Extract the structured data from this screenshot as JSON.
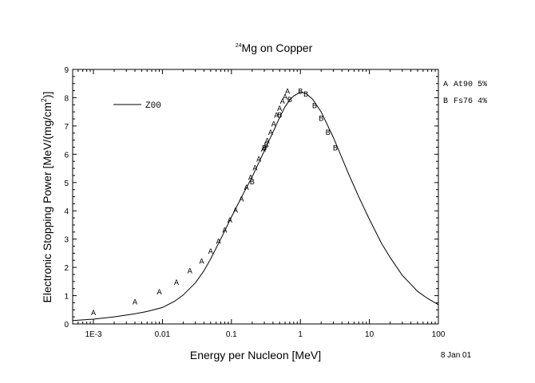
{
  "chart_data": {
    "type": "scatter",
    "title_prefix": "24",
    "title_text": "Mg on Copper",
    "xlabel": "Energy per Nucleon [MeV]",
    "ylabel_main": "Electronic Stopping Power [MeV/(mg/cm",
    "ylabel_sup": "2",
    "ylabel_end": ")]",
    "date": "8 Jan 01",
    "xscale": "log",
    "xlim": [
      0.0005,
      100
    ],
    "ylim": [
      0,
      9
    ],
    "x_tick_labels": [
      {
        "value": 0.001,
        "label": "1E-3"
      },
      {
        "value": 0.01,
        "label": "0.01"
      },
      {
        "value": 0.1,
        "label": "0.1"
      },
      {
        "value": 1,
        "label": "1"
      },
      {
        "value": 10,
        "label": "10"
      },
      {
        "value": 100,
        "label": "100"
      }
    ],
    "y_ticks": [
      0,
      1,
      2,
      3,
      4,
      5,
      6,
      7,
      8,
      9
    ],
    "legend": {
      "line_label": "Z00",
      "markers": [
        {
          "marker": "A",
          "text": "At90 5%"
        },
        {
          "marker": "B",
          "text": "Fs76 4%"
        }
      ]
    },
    "series": [
      {
        "name": "Z00",
        "kind": "line",
        "x": [
          0.0005,
          0.001,
          0.002,
          0.004,
          0.006,
          0.01,
          0.015,
          0.02,
          0.03,
          0.04,
          0.05,
          0.07,
          0.1,
          0.15,
          0.2,
          0.3,
          0.4,
          0.5,
          0.6,
          0.7,
          0.8,
          1.0,
          1.2,
          1.5,
          2.0,
          3.0,
          5.0,
          7.0,
          10,
          15,
          20,
          30,
          50,
          70,
          100
        ],
        "y": [
          0.12,
          0.17,
          0.25,
          0.36,
          0.44,
          0.58,
          0.8,
          1.02,
          1.45,
          1.88,
          2.3,
          3.0,
          3.78,
          4.62,
          5.2,
          6.12,
          6.78,
          7.3,
          7.68,
          7.92,
          8.06,
          8.2,
          8.15,
          7.95,
          7.5,
          6.6,
          5.3,
          4.5,
          3.7,
          2.85,
          2.35,
          1.72,
          1.15,
          0.9,
          0.68
        ]
      },
      {
        "name": "A",
        "kind": "marker",
        "x": [
          0.001,
          0.004,
          0.009,
          0.016,
          0.025,
          0.037,
          0.05,
          0.065,
          0.08,
          0.095,
          0.115,
          0.14,
          0.165,
          0.19,
          0.22,
          0.25,
          0.29,
          0.33,
          0.37,
          0.41,
          0.45,
          0.5,
          0.55,
          0.6,
          0.65
        ],
        "y": [
          0.42,
          0.8,
          1.15,
          1.5,
          1.9,
          2.25,
          2.6,
          2.95,
          3.35,
          3.7,
          4.05,
          4.45,
          4.85,
          5.2,
          5.55,
          5.85,
          6.2,
          6.5,
          6.8,
          7.1,
          7.4,
          7.65,
          7.9,
          8.05,
          8.25
        ]
      },
      {
        "name": "B",
        "kind": "marker",
        "x": [
          0.2,
          0.3,
          0.32,
          0.5,
          0.7,
          1.0,
          1.2,
          1.6,
          2.0,
          2.5,
          3.2
        ],
        "y": [
          5.05,
          6.25,
          6.35,
          7.4,
          7.95,
          8.25,
          8.15,
          7.75,
          7.3,
          6.8,
          6.25
        ]
      }
    ]
  }
}
